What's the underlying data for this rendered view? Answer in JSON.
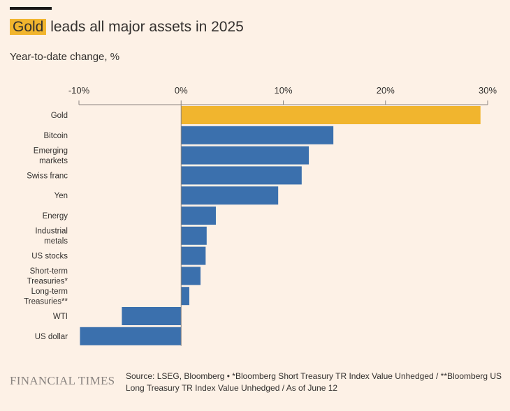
{
  "header": {
    "title_highlight": "Gold",
    "title_rest": " leads all major assets in 2025",
    "subtitle": "Year-to-date change, %"
  },
  "footer": {
    "logo": "FINANCIAL TIMES",
    "source": "Source: LSEG, Bloomberg • *Bloomberg Short Treasury TR Index Value Unhedged / **Bloomberg US Long Treasury TR Index Value Unhedged / As of June 12"
  },
  "colors": {
    "highlight": "#f1b52e",
    "bar": "#3b70ad",
    "background": "#fdf1e6",
    "axis": "#8a8480",
    "text": "#33302e"
  },
  "chart_data": {
    "type": "bar",
    "orientation": "horizontal",
    "xlim": [
      -10,
      30
    ],
    "x_ticks": [
      -10,
      0,
      10,
      20,
      30
    ],
    "x_tick_labels": [
      "-10%",
      "0%",
      "10%",
      "20%",
      "30%"
    ],
    "categories": [
      [
        "Gold"
      ],
      [
        "Bitcoin"
      ],
      [
        "Emerging",
        "markets"
      ],
      [
        "Swiss franc"
      ],
      [
        "Yen"
      ],
      [
        "Energy"
      ],
      [
        "Industrial",
        "metals"
      ],
      [
        "US stocks"
      ],
      [
        "Short-term",
        "Treasuries*"
      ],
      [
        "Long-term",
        "Treasuries**"
      ],
      [
        "WTI"
      ],
      [
        "US dollar"
      ]
    ],
    "values": [
      29.3,
      14.9,
      12.5,
      11.8,
      9.5,
      3.4,
      2.5,
      2.4,
      1.9,
      0.8,
      -5.8,
      -9.9
    ],
    "highlight_index": 0
  }
}
